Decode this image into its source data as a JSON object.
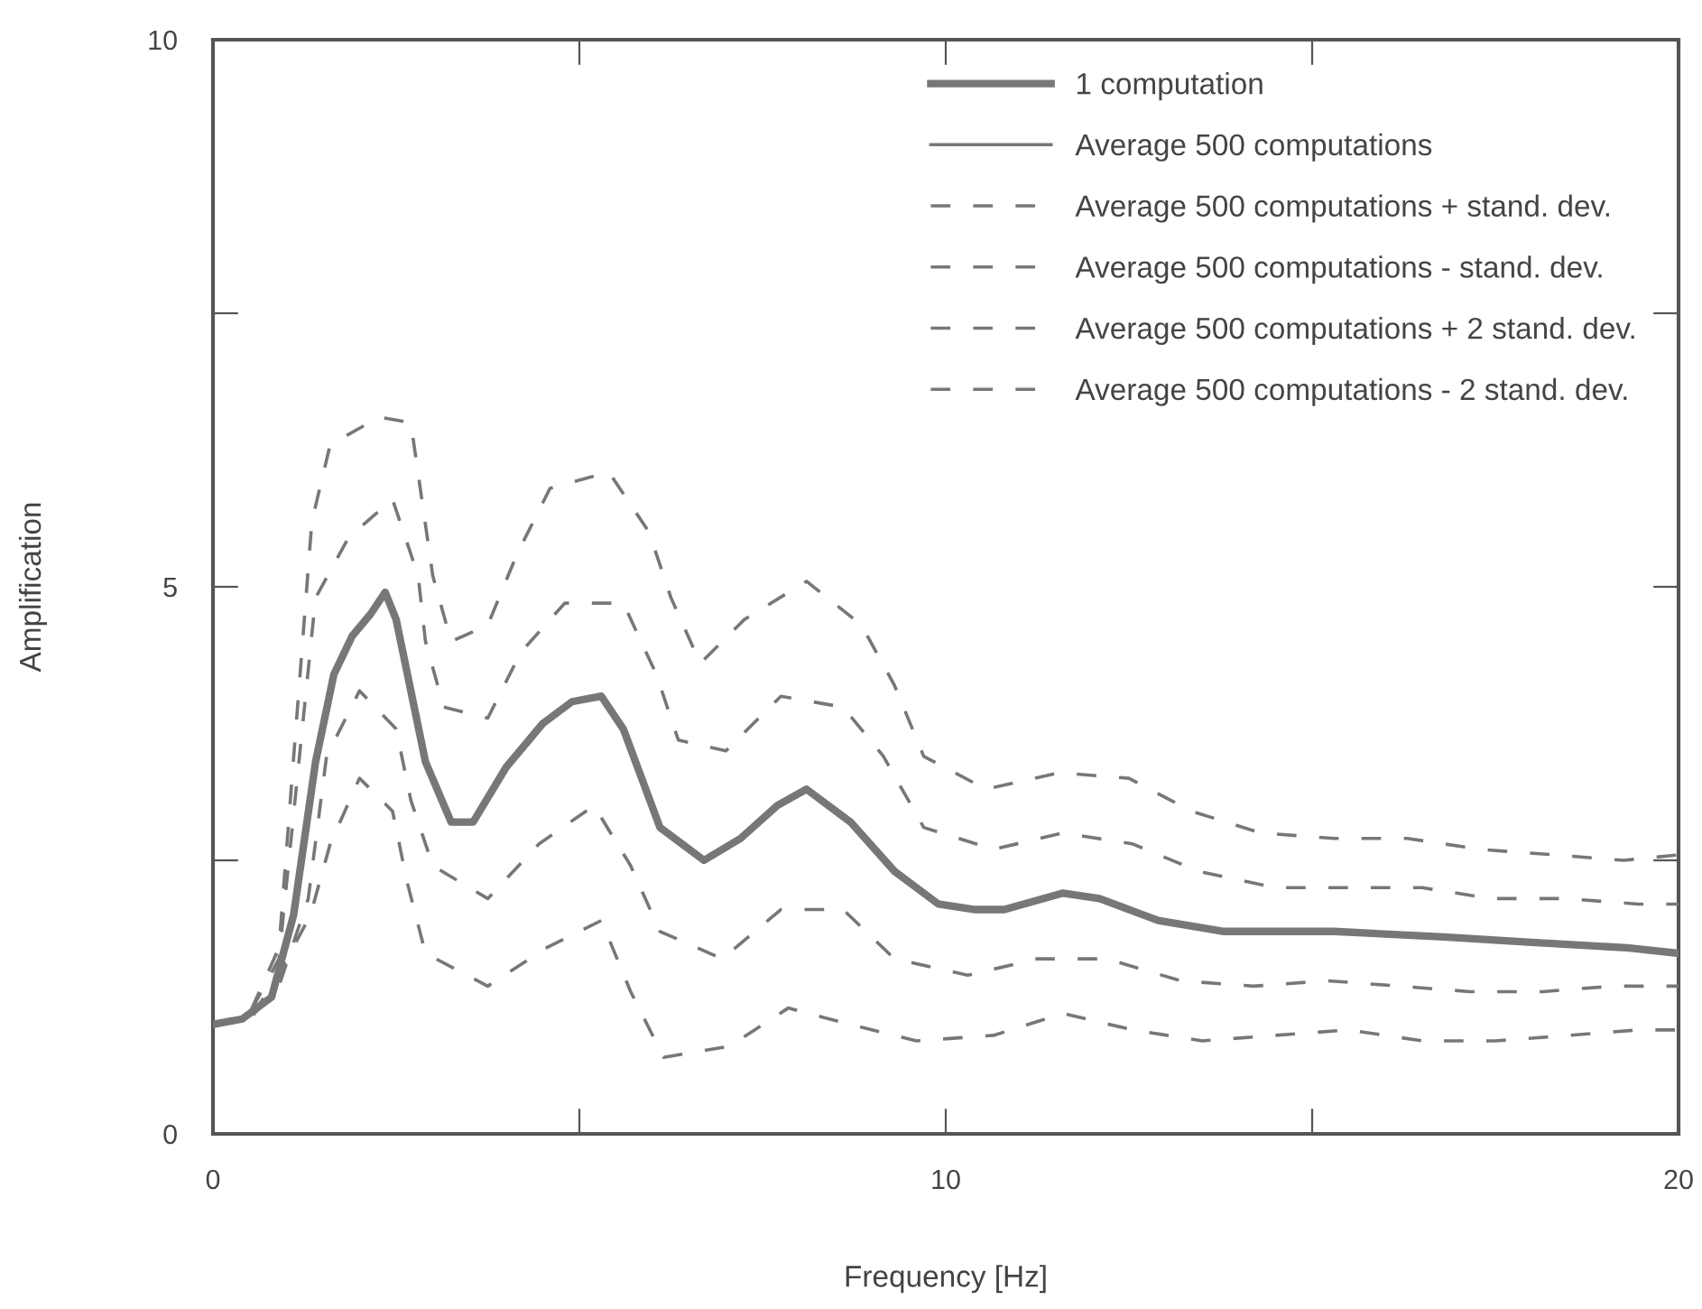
{
  "chart_data": {
    "type": "line",
    "xlabel": "Frequency [Hz]",
    "ylabel": "Amplification",
    "xlim": [
      0,
      20
    ],
    "ylim": [
      0,
      10
    ],
    "xticks": [
      0,
      {
        "value": 5,
        "label": null
      },
      10,
      {
        "value": 15,
        "label": null
      },
      20
    ],
    "yticks": [
      0,
      {
        "value": 2.5,
        "label": null
      },
      5,
      {
        "value": 7.5,
        "label": null
      },
      10
    ],
    "grid": false,
    "legend": "top right",
    "marker": "none",
    "series": [
      {
        "name": "1 computation",
        "color": "#777777",
        "line_style": "solid",
        "x": [
          0,
          0.4,
          0.8,
          1.1,
          1.4,
          1.65,
          1.9,
          2.15,
          2.35,
          2.5,
          2.9,
          3.25,
          3.55,
          4.0,
          4.5,
          4.9,
          5.3,
          5.6,
          6.1,
          6.7,
          7.2,
          7.7,
          8.1,
          8.7,
          9.3,
          9.9,
          10.4,
          10.8,
          11.6,
          12.1,
          12.9,
          13.8,
          15.3,
          16.8,
          18.0,
          19.3,
          20.0
        ],
        "values": [
          1.0,
          1.05,
          1.25,
          2.0,
          3.4,
          4.2,
          4.55,
          4.75,
          4.95,
          4.7,
          3.4,
          2.85,
          2.85,
          3.35,
          3.75,
          3.95,
          4.0,
          3.7,
          2.8,
          2.5,
          2.7,
          3.0,
          3.15,
          2.85,
          2.4,
          2.1,
          2.05,
          2.05,
          2.2,
          2.15,
          1.95,
          1.85,
          1.85,
          1.8,
          1.75,
          1.7,
          1.65
        ]
      },
      {
        "name": "Average 500 computations",
        "color": "#777777",
        "line_style": "solid"
      },
      {
        "name": "Average 500 computations + stand. dev.",
        "color": "#777777",
        "line_style": "dashed",
        "x": [
          0,
          0.5,
          0.9,
          1.4,
          1.85,
          2.45,
          2.8,
          2.9,
          3.15,
          3.75,
          4.2,
          4.8,
          5.6,
          6.05,
          6.35,
          7.0,
          7.75,
          8.6,
          9.15,
          9.7,
          10.65,
          11.6,
          12.55,
          13.45,
          14.5,
          15.5,
          16.5,
          17.45,
          18.45,
          19.45,
          20.0
        ],
        "values": [
          1.0,
          1.1,
          1.6,
          4.9,
          5.45,
          5.8,
          5.1,
          4.5,
          3.9,
          3.8,
          4.4,
          4.85,
          4.85,
          4.2,
          3.6,
          3.5,
          4.0,
          3.9,
          3.45,
          2.8,
          2.6,
          2.75,
          2.65,
          2.4,
          2.25,
          2.25,
          2.25,
          2.15,
          2.15,
          2.1,
          2.1
        ]
      },
      {
        "name": "Average 500 computations - stand. dev.",
        "color": "#777777",
        "line_style": "dashed",
        "x": [
          0,
          0.5,
          0.9,
          1.3,
          1.55,
          2.0,
          2.5,
          2.7,
          3.0,
          3.75,
          4.45,
          5.2,
          5.7,
          6.1,
          6.95,
          7.75,
          8.6,
          9.3,
          10.3,
          11.25,
          12.2,
          13.2,
          14.2,
          15.2,
          16.2,
          17.15,
          18.15,
          19.1,
          20.0
        ],
        "values": [
          1.0,
          1.05,
          1.35,
          2.15,
          3.45,
          4.05,
          3.7,
          3.05,
          2.45,
          2.15,
          2.65,
          3.0,
          2.45,
          1.85,
          1.6,
          2.05,
          2.05,
          1.6,
          1.45,
          1.6,
          1.6,
          1.4,
          1.35,
          1.4,
          1.35,
          1.3,
          1.3,
          1.35,
          1.35
        ]
      },
      {
        "name": "Average 500 computations + 2 stand. dev.",
        "color": "#777777",
        "line_style": "dashed",
        "x": [
          0,
          0.5,
          0.9,
          1.35,
          1.6,
          2.27,
          2.7,
          2.85,
          3.0,
          3.25,
          3.75,
          4.15,
          4.6,
          5.4,
          5.95,
          6.25,
          6.65,
          7.25,
          8.1,
          8.85,
          9.3,
          9.7,
          10.55,
          11.55,
          12.5,
          13.35,
          14.3,
          15.3,
          16.3,
          17.3,
          18.3,
          19.25,
          20.0
        ],
        "values": [
          1.0,
          1.1,
          1.7,
          5.6,
          6.3,
          6.55,
          6.5,
          5.8,
          5.1,
          4.5,
          4.65,
          5.3,
          5.9,
          6.05,
          5.5,
          4.9,
          4.3,
          4.7,
          5.05,
          4.65,
          4.1,
          3.45,
          3.15,
          3.3,
          3.25,
          2.95,
          2.75,
          2.7,
          2.7,
          2.6,
          2.55,
          2.5,
          2.55
        ]
      },
      {
        "name": "Average 500 computations - 2 stand. dev.",
        "color": "#777777",
        "line_style": "dashed",
        "x": [
          0,
          0.5,
          0.85,
          1.33,
          1.6,
          2.0,
          2.45,
          2.65,
          2.9,
          3.75,
          4.55,
          5.3,
          5.7,
          6.15,
          7.05,
          7.85,
          8.7,
          9.6,
          10.65,
          11.6,
          12.55,
          13.5,
          14.5,
          15.5,
          16.5,
          17.5,
          18.5,
          19.45,
          20.0
        ],
        "values": [
          1.0,
          1.05,
          1.4,
          2.0,
          2.65,
          3.25,
          2.95,
          2.3,
          1.65,
          1.35,
          1.7,
          1.95,
          1.3,
          0.7,
          0.8,
          1.15,
          1.0,
          0.85,
          0.9,
          1.1,
          0.95,
          0.85,
          0.9,
          0.95,
          0.85,
          0.85,
          0.9,
          0.95,
          0.95
        ]
      }
    ]
  }
}
